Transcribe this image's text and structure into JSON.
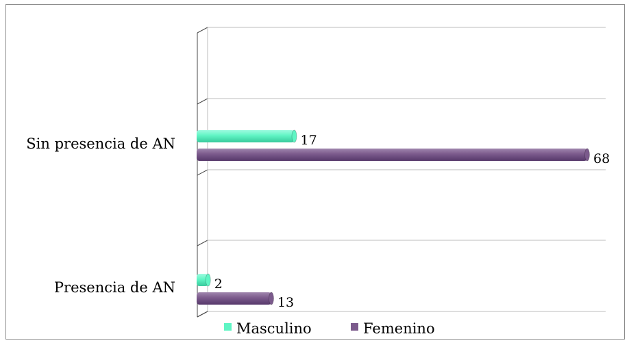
{
  "chart_data": {
    "type": "bar",
    "orientation": "horizontal",
    "categories": [
      "Presencia de AN",
      "Sin presencia de AN"
    ],
    "series": [
      {
        "name": "Masculino",
        "values": [
          2,
          17
        ],
        "color": "#5ff5c4"
      },
      {
        "name": "Femenino",
        "values": [
          13,
          68
        ],
        "color": "#7b5a8c"
      }
    ],
    "xlim": [
      0,
      70
    ],
    "title": "",
    "xlabel": "",
    "ylabel": "",
    "grid": true,
    "legend": "bottom"
  }
}
